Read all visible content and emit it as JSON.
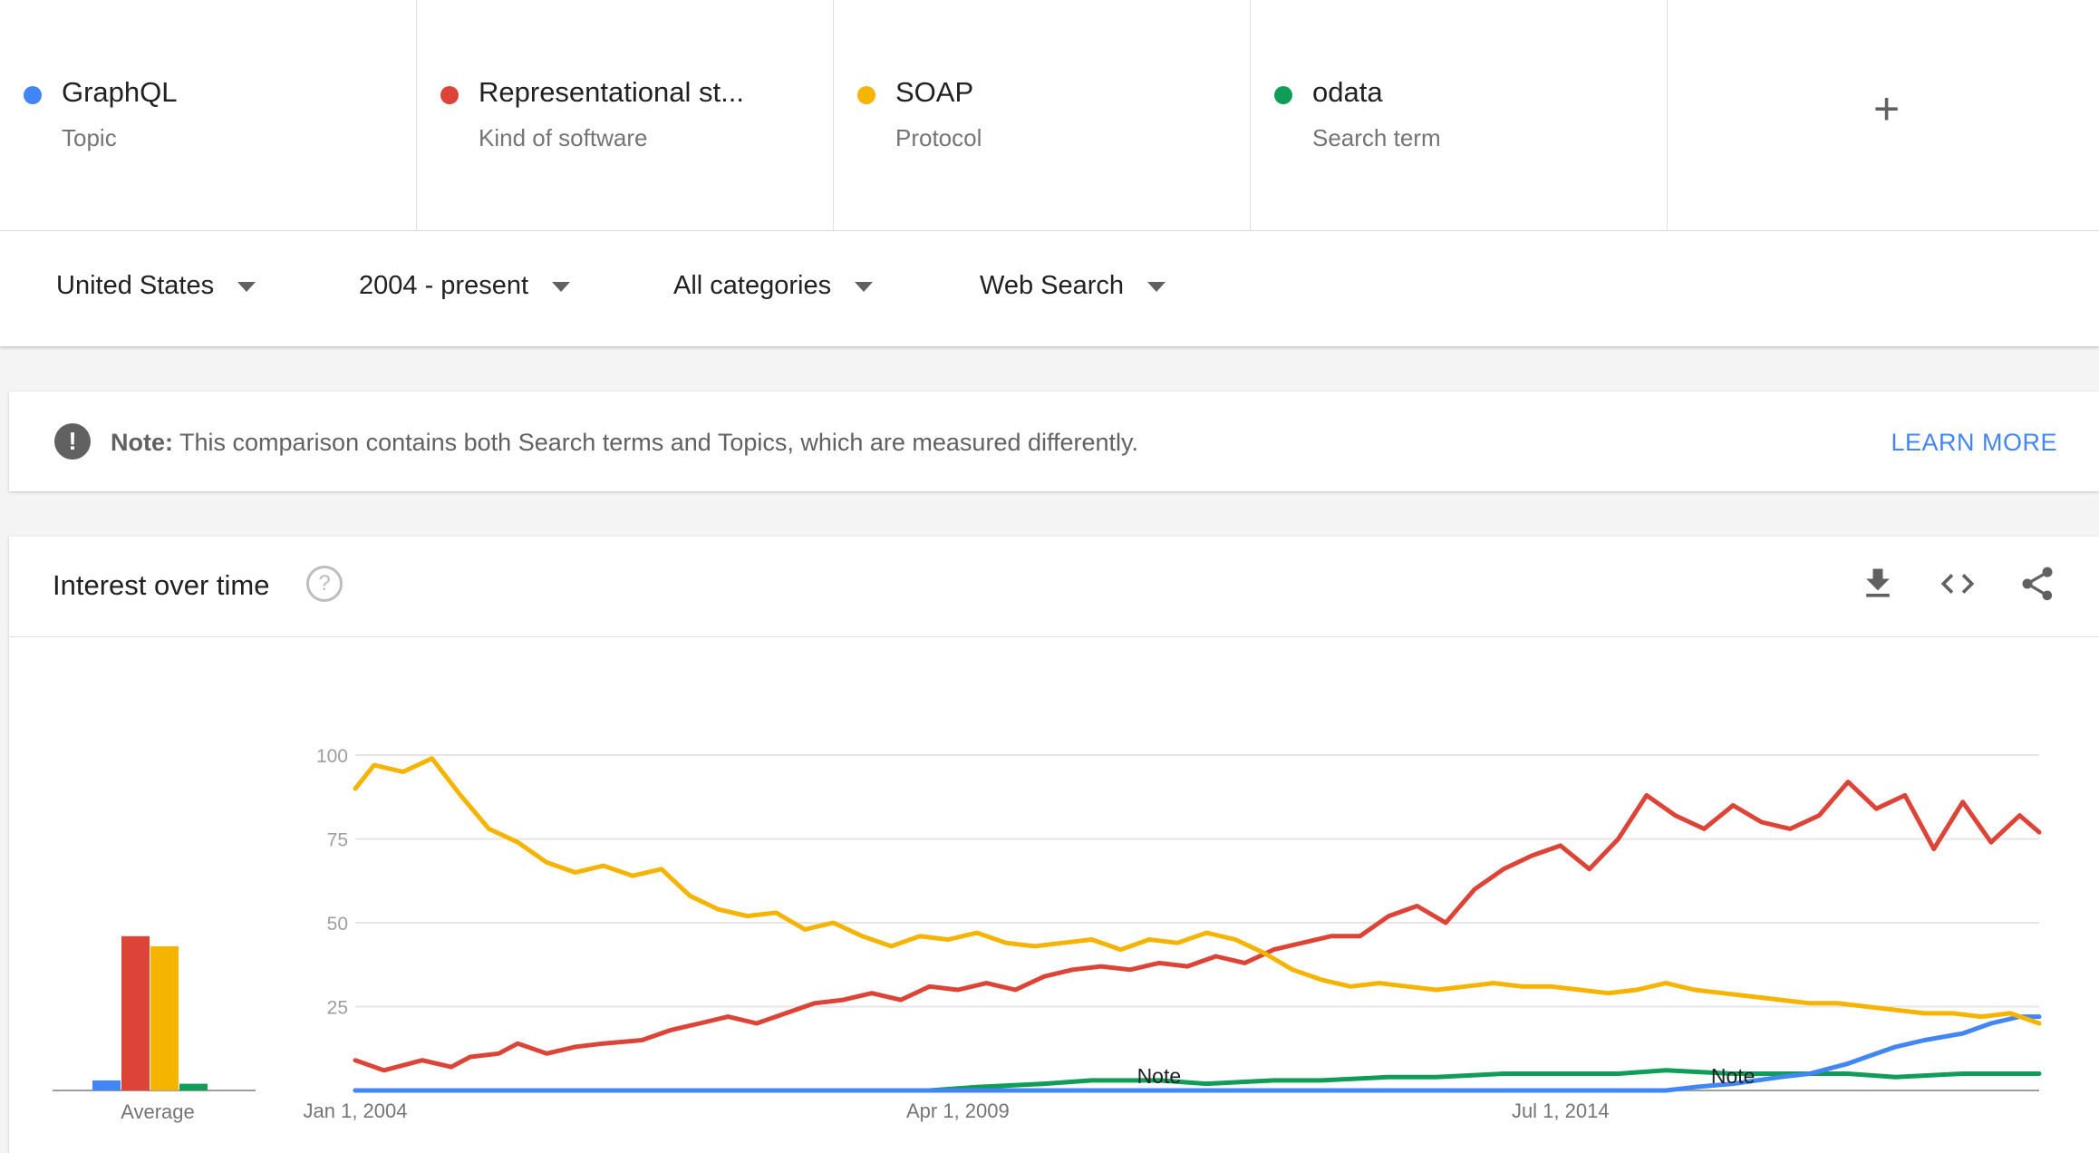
{
  "terms": [
    {
      "name": "GraphQL",
      "kind": "Topic",
      "color": "#4285f4"
    },
    {
      "name": "Representational st...",
      "kind": "Kind of software",
      "color": "#db4437"
    },
    {
      "name": "SOAP",
      "kind": "Protocol",
      "color": "#f4b400"
    },
    {
      "name": "odata",
      "kind": "Search term",
      "color": "#0f9d58"
    }
  ],
  "add_term_symbol": "+",
  "filters": {
    "region": "United States",
    "time_range": "2004 - present",
    "category": "All categories",
    "search_type": "Web Search"
  },
  "note": {
    "icon": "exclamation-icon",
    "label": "Note:",
    "text": "This comparison contains both Search terms and Topics, which are measured differently.",
    "link": "LEARN MORE"
  },
  "chart_card": {
    "title": "Interest over time",
    "help_symbol": "?",
    "tools": [
      "download-icon",
      "embed-code-icon",
      "share-icon"
    ]
  },
  "chart_data": {
    "type": "line",
    "ylim": [
      0,
      100
    ],
    "y_ticks": [
      "100",
      "75",
      "50",
      "25"
    ],
    "x_tick_labels": [
      "Jan 1, 2004",
      "Apr 1, 2009",
      "Jul 1, 2014"
    ],
    "x_tick_dates": [
      "2004-01-01",
      "2009-04-01",
      "2014-07-01"
    ],
    "x_range": [
      "2004-01-01",
      "2018-09-01"
    ],
    "annotations": [
      {
        "label": "Note",
        "date": "2011-01-01"
      },
      {
        "label": "Note",
        "date": "2016-01-01"
      }
    ],
    "averages": {
      "label": "Average",
      "values": [
        {
          "name": "GraphQL",
          "value": 3
        },
        {
          "name": "Representational st...",
          "value": 46
        },
        {
          "name": "SOAP",
          "value": 43
        },
        {
          "name": "odata",
          "value": 2
        }
      ]
    },
    "series": [
      {
        "name": "Representational st...",
        "color": "#db4437",
        "points": [
          [
            "2004-01-01",
            9
          ],
          [
            "2004-04-01",
            6
          ],
          [
            "2004-08-01",
            9
          ],
          [
            "2004-11-01",
            7
          ],
          [
            "2005-01-01",
            10
          ],
          [
            "2005-04-01",
            11
          ],
          [
            "2005-06-01",
            14
          ],
          [
            "2005-09-01",
            11
          ],
          [
            "2005-12-01",
            13
          ],
          [
            "2006-03-01",
            14
          ],
          [
            "2006-07-01",
            15
          ],
          [
            "2006-10-01",
            18
          ],
          [
            "2007-01-01",
            20
          ],
          [
            "2007-04-01",
            22
          ],
          [
            "2007-07-01",
            20
          ],
          [
            "2007-10-01",
            23
          ],
          [
            "2008-01-01",
            26
          ],
          [
            "2008-04-01",
            27
          ],
          [
            "2008-07-01",
            29
          ],
          [
            "2008-10-01",
            27
          ],
          [
            "2009-01-01",
            31
          ],
          [
            "2009-04-01",
            30
          ],
          [
            "2009-07-01",
            32
          ],
          [
            "2009-10-01",
            30
          ],
          [
            "2010-01-01",
            34
          ],
          [
            "2010-04-01",
            36
          ],
          [
            "2010-07-01",
            37
          ],
          [
            "2010-10-01",
            36
          ],
          [
            "2011-01-01",
            38
          ],
          [
            "2011-04-01",
            37
          ],
          [
            "2011-07-01",
            40
          ],
          [
            "2011-10-01",
            38
          ],
          [
            "2012-01-01",
            42
          ],
          [
            "2012-04-01",
            44
          ],
          [
            "2012-07-01",
            46
          ],
          [
            "2012-10-01",
            46
          ],
          [
            "2013-01-01",
            52
          ],
          [
            "2013-04-01",
            55
          ],
          [
            "2013-07-01",
            50
          ],
          [
            "2013-10-01",
            60
          ],
          [
            "2014-01-01",
            66
          ],
          [
            "2014-04-01",
            70
          ],
          [
            "2014-07-01",
            73
          ],
          [
            "2014-10-01",
            66
          ],
          [
            "2015-01-01",
            75
          ],
          [
            "2015-04-01",
            88
          ],
          [
            "2015-07-01",
            82
          ],
          [
            "2015-10-01",
            78
          ],
          [
            "2016-01-01",
            85
          ],
          [
            "2016-04-01",
            80
          ],
          [
            "2016-07-01",
            78
          ],
          [
            "2016-10-01",
            82
          ],
          [
            "2017-01-01",
            92
          ],
          [
            "2017-04-01",
            84
          ],
          [
            "2017-07-01",
            88
          ],
          [
            "2017-10-01",
            72
          ],
          [
            "2018-01-01",
            86
          ],
          [
            "2018-04-01",
            74
          ],
          [
            "2018-07-01",
            82
          ],
          [
            "2018-09-01",
            77
          ]
        ]
      },
      {
        "name": "SOAP",
        "color": "#f4b400",
        "points": [
          [
            "2004-01-01",
            90
          ],
          [
            "2004-03-01",
            97
          ],
          [
            "2004-06-01",
            95
          ],
          [
            "2004-09-01",
            99
          ],
          [
            "2004-12-01",
            88
          ],
          [
            "2005-03-01",
            78
          ],
          [
            "2005-06-01",
            74
          ],
          [
            "2005-09-01",
            68
          ],
          [
            "2005-12-01",
            65
          ],
          [
            "2006-03-01",
            67
          ],
          [
            "2006-06-01",
            64
          ],
          [
            "2006-09-01",
            66
          ],
          [
            "2006-12-01",
            58
          ],
          [
            "2007-03-01",
            54
          ],
          [
            "2007-06-01",
            52
          ],
          [
            "2007-09-01",
            53
          ],
          [
            "2007-12-01",
            48
          ],
          [
            "2008-03-01",
            50
          ],
          [
            "2008-06-01",
            46
          ],
          [
            "2008-09-01",
            43
          ],
          [
            "2008-12-01",
            46
          ],
          [
            "2009-03-01",
            45
          ],
          [
            "2009-06-01",
            47
          ],
          [
            "2009-09-01",
            44
          ],
          [
            "2009-12-01",
            43
          ],
          [
            "2010-03-01",
            44
          ],
          [
            "2010-06-01",
            45
          ],
          [
            "2010-09-01",
            42
          ],
          [
            "2010-12-01",
            45
          ],
          [
            "2011-03-01",
            44
          ],
          [
            "2011-06-01",
            47
          ],
          [
            "2011-09-01",
            45
          ],
          [
            "2011-12-01",
            41
          ],
          [
            "2012-03-01",
            36
          ],
          [
            "2012-06-01",
            33
          ],
          [
            "2012-09-01",
            31
          ],
          [
            "2012-12-01",
            32
          ],
          [
            "2013-03-01",
            31
          ],
          [
            "2013-06-01",
            30
          ],
          [
            "2013-09-01",
            31
          ],
          [
            "2013-12-01",
            32
          ],
          [
            "2014-03-01",
            31
          ],
          [
            "2014-06-01",
            31
          ],
          [
            "2014-09-01",
            30
          ],
          [
            "2014-12-01",
            29
          ],
          [
            "2015-03-01",
            30
          ],
          [
            "2015-06-01",
            32
          ],
          [
            "2015-09-01",
            30
          ],
          [
            "2015-12-01",
            29
          ],
          [
            "2016-03-01",
            28
          ],
          [
            "2016-06-01",
            27
          ],
          [
            "2016-09-01",
            26
          ],
          [
            "2016-12-01",
            26
          ],
          [
            "2017-03-01",
            25
          ],
          [
            "2017-06-01",
            24
          ],
          [
            "2017-09-01",
            23
          ],
          [
            "2017-12-01",
            23
          ],
          [
            "2018-03-01",
            22
          ],
          [
            "2018-06-01",
            23
          ],
          [
            "2018-09-01",
            20
          ]
        ]
      },
      {
        "name": "odata",
        "color": "#0f9d58",
        "points": [
          [
            "2004-01-01",
            0
          ],
          [
            "2009-01-01",
            0
          ],
          [
            "2009-06-01",
            1
          ],
          [
            "2010-01-01",
            2
          ],
          [
            "2010-06-01",
            3
          ],
          [
            "2011-01-01",
            3
          ],
          [
            "2011-06-01",
            2
          ],
          [
            "2012-01-01",
            3
          ],
          [
            "2012-06-01",
            3
          ],
          [
            "2013-01-01",
            4
          ],
          [
            "2013-06-01",
            4
          ],
          [
            "2014-01-01",
            5
          ],
          [
            "2014-06-01",
            5
          ],
          [
            "2015-01-01",
            5
          ],
          [
            "2015-06-01",
            6
          ],
          [
            "2016-01-01",
            5
          ],
          [
            "2016-06-01",
            5
          ],
          [
            "2017-01-01",
            5
          ],
          [
            "2017-06-01",
            4
          ],
          [
            "2018-01-01",
            5
          ],
          [
            "2018-06-01",
            5
          ],
          [
            "2018-09-01",
            5
          ]
        ]
      },
      {
        "name": "GraphQL",
        "color": "#4285f4",
        "points": [
          [
            "2004-01-01",
            0
          ],
          [
            "2015-06-01",
            0
          ],
          [
            "2015-09-01",
            1
          ],
          [
            "2016-01-01",
            2
          ],
          [
            "2016-06-01",
            4
          ],
          [
            "2016-09-01",
            5
          ],
          [
            "2017-01-01",
            8
          ],
          [
            "2017-03-01",
            10
          ],
          [
            "2017-06-01",
            13
          ],
          [
            "2017-09-01",
            15
          ],
          [
            "2018-01-01",
            17
          ],
          [
            "2018-04-01",
            20
          ],
          [
            "2018-07-01",
            22
          ],
          [
            "2018-09-01",
            22
          ]
        ]
      }
    ]
  }
}
